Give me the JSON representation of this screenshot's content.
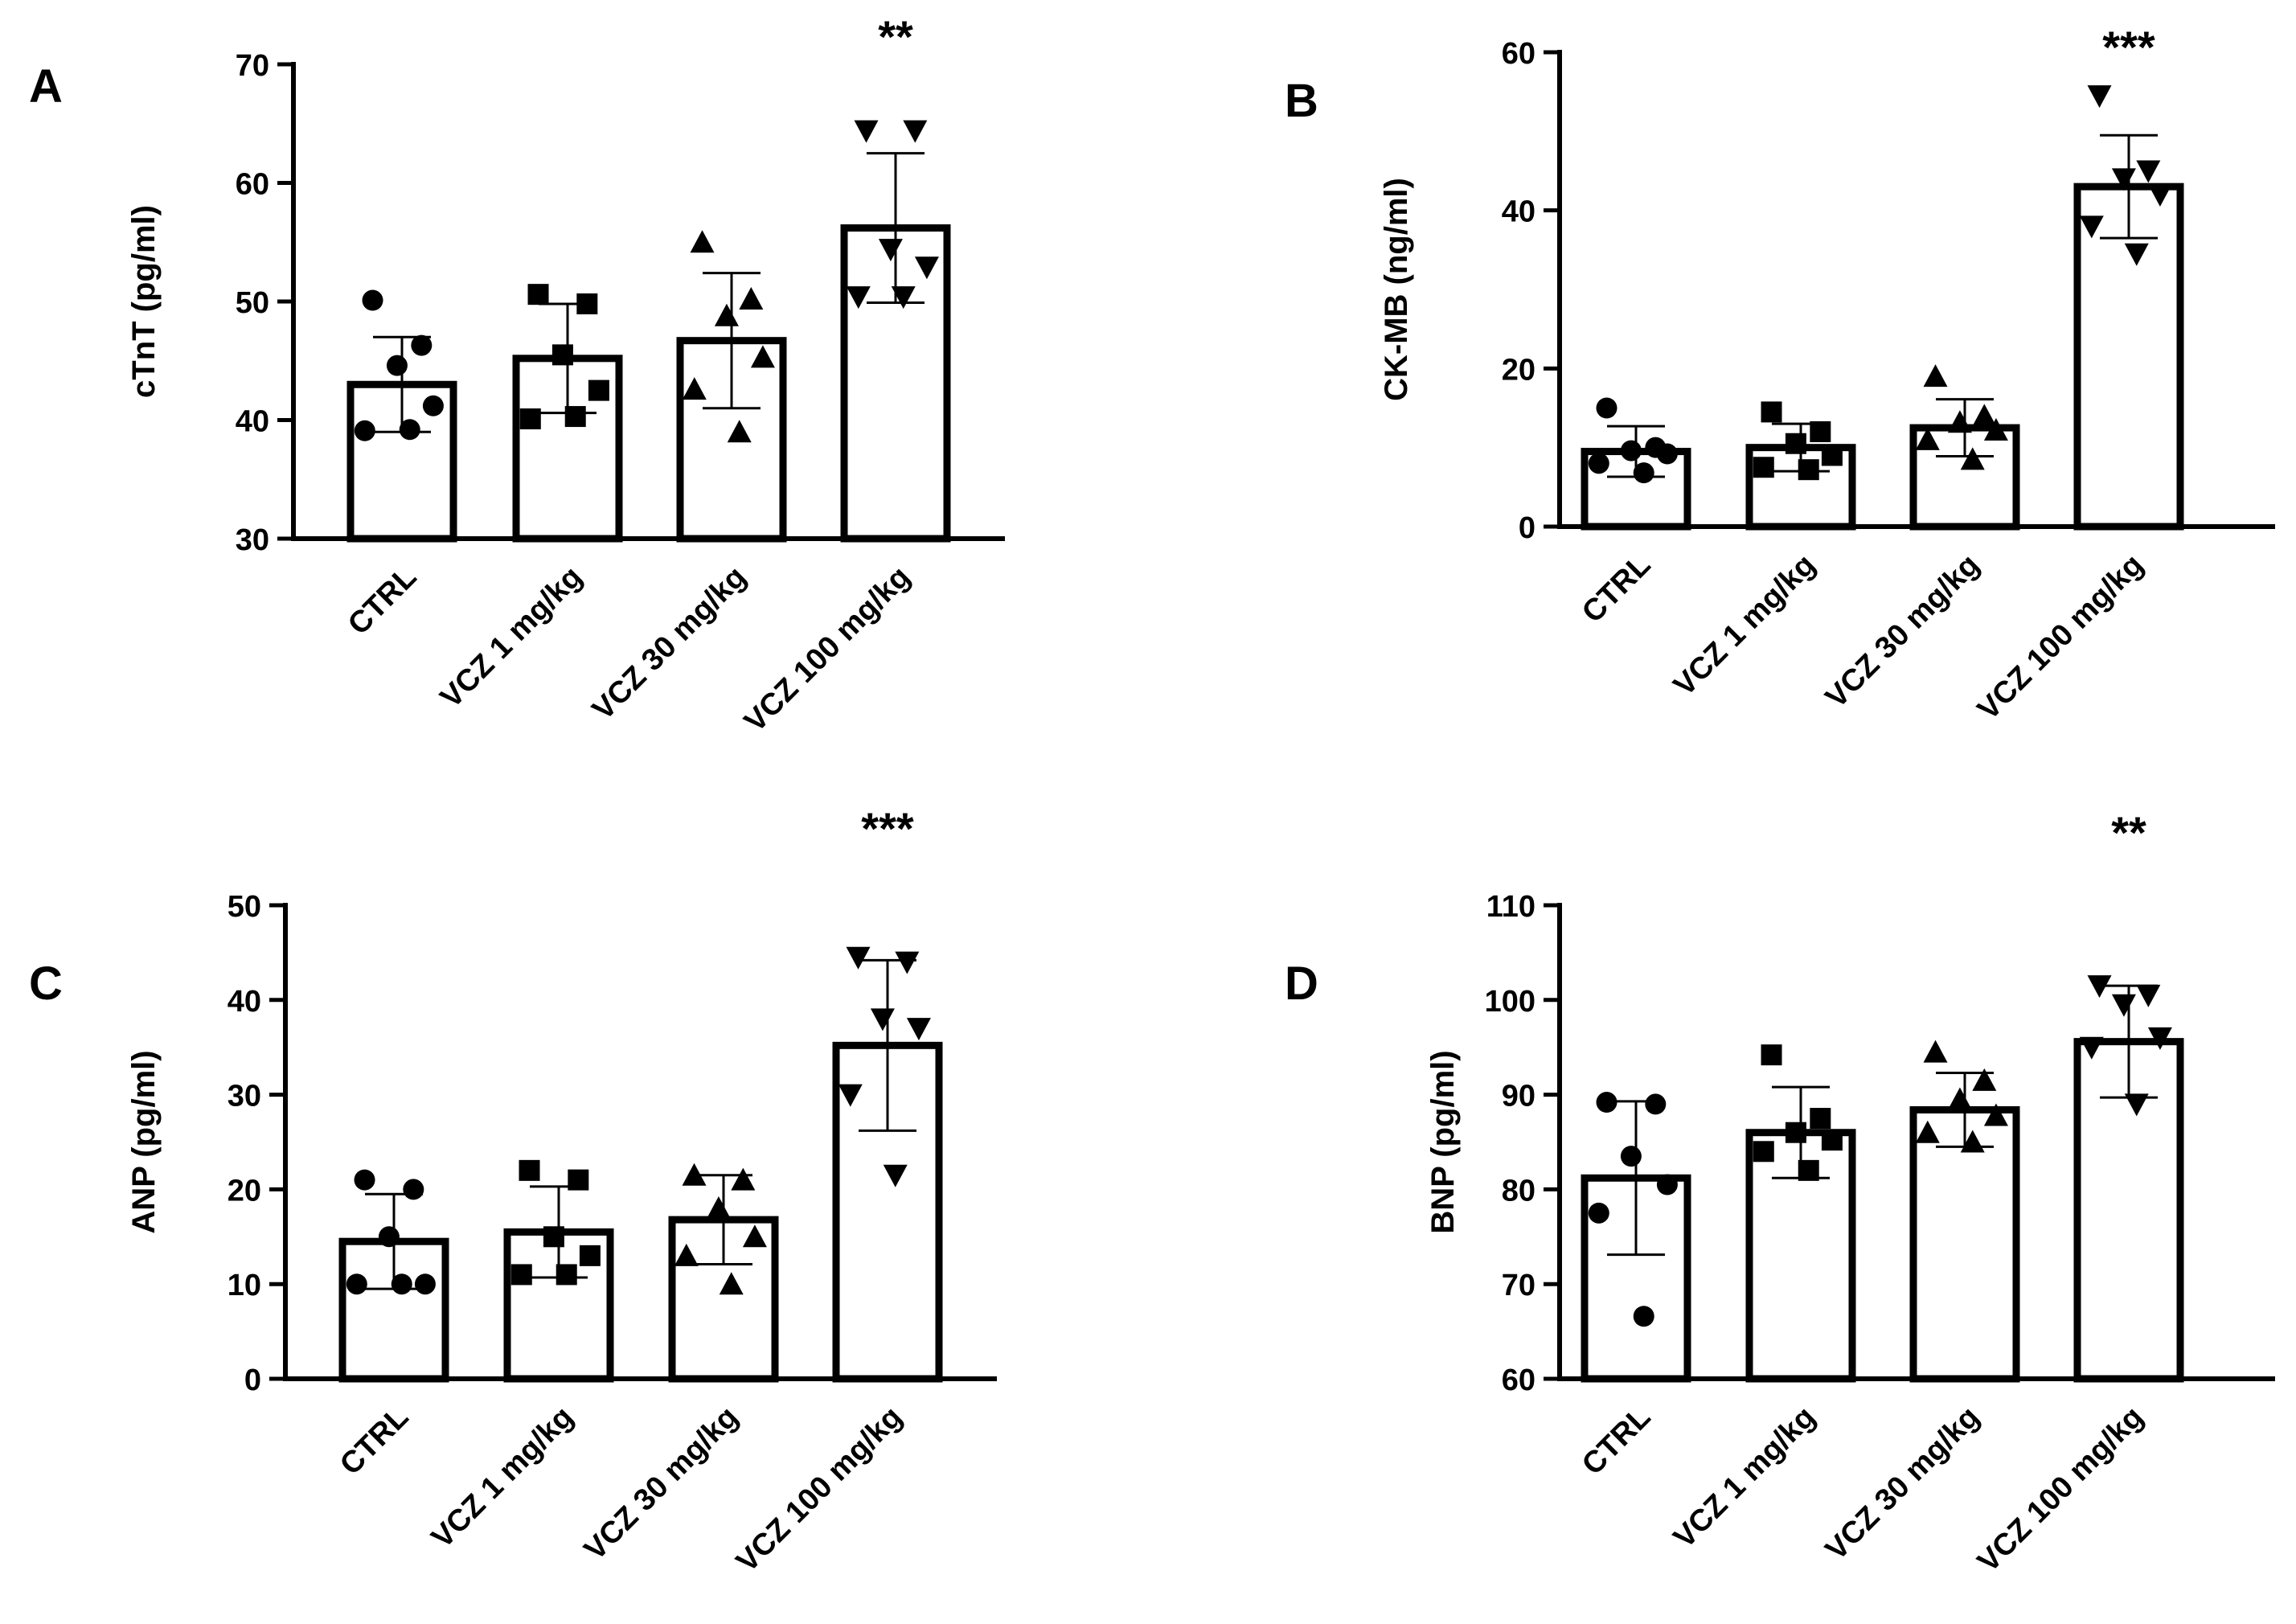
{
  "chart_data": [
    {
      "panel": "A",
      "type": "bar",
      "categories": [
        "CTRL",
        "VCZ 1 mg/kg",
        "VCZ 30 mg/kg",
        "VCZ 100 mg/kg"
      ],
      "values": [
        43.0,
        45.2,
        46.7,
        56.2
      ],
      "error": [
        4.0,
        4.6,
        5.7,
        6.3
      ],
      "markers": [
        "circle",
        "square",
        "triangle-up",
        "triangle-down"
      ],
      "points": [
        [
          50.1,
          46.3,
          44.6,
          41.2,
          39.1,
          39.2
        ],
        [
          50.6,
          49.8,
          45.5,
          42.5,
          40.1,
          40.3
        ],
        [
          55.0,
          50.2,
          48.8,
          45.3,
          42.6,
          39.0
        ],
        [
          64.4,
          64.4,
          54.4,
          52.9,
          50.4,
          50.4
        ]
      ],
      "significance": [
        "",
        "",
        "",
        "**"
      ],
      "title": "",
      "xlabel": "",
      "ylabel": "cTnT (pg/ml)",
      "ylim": [
        30,
        70
      ],
      "yticks": [
        30,
        40,
        50,
        60,
        70
      ]
    },
    {
      "panel": "B",
      "type": "bar",
      "categories": [
        "CTRL",
        "VCZ 1 mg/kg",
        "VCZ 30 mg/kg",
        "VCZ 100 mg/kg"
      ],
      "values": [
        9.5,
        10.0,
        12.5,
        43.0
      ],
      "error": [
        3.2,
        3.0,
        3.6,
        6.5
      ],
      "markers": [
        "circle",
        "square",
        "triangle-up",
        "triangle-down"
      ],
      "points": [
        [
          15.0,
          10.0,
          9.6,
          9.2,
          8.0,
          6.8
        ],
        [
          14.5,
          12.0,
          10.5,
          9.0,
          7.5,
          7.2
        ],
        [
          19.0,
          14.0,
          13.2,
          12.2,
          11.0,
          8.5
        ],
        [
          54.5,
          45.0,
          44.0,
          42.0,
          38.0,
          34.5
        ]
      ],
      "significance": [
        "",
        "",
        "",
        "***"
      ],
      "title": "",
      "xlabel": "",
      "ylabel": "CK-MB (ng/ml)",
      "ylim": [
        0,
        60
      ],
      "yticks": [
        0,
        20,
        40,
        60
      ]
    },
    {
      "panel": "C",
      "type": "bar",
      "categories": [
        "CTRL",
        "VCZ 1 mg/kg",
        "VCZ 30 mg/kg",
        "VCZ 100 mg/kg"
      ],
      "values": [
        14.5,
        15.5,
        16.8,
        35.2
      ],
      "error": [
        5.0,
        4.8,
        4.7,
        9.0
      ],
      "markers": [
        "circle",
        "square",
        "triangle-up",
        "triangle-down"
      ],
      "points": [
        [
          21.0,
          20.0,
          15.0,
          10.0,
          10.0,
          10.0
        ],
        [
          22.0,
          21.0,
          15.0,
          13.0,
          11.0,
          11.0
        ],
        [
          21.5,
          21.0,
          18.0,
          15.0,
          13.0,
          10.0
        ],
        [
          44.5,
          44.0,
          38.0,
          37.0,
          30.0,
          21.5
        ]
      ],
      "significance": [
        "",
        "",
        "",
        "***"
      ],
      "title": "",
      "xlabel": "",
      "ylabel": "ANP (pg/ml)",
      "ylim": [
        0,
        50
      ],
      "yticks": [
        0,
        10,
        20,
        30,
        40,
        50
      ]
    },
    {
      "panel": "D",
      "type": "bar",
      "categories": [
        "CTRL",
        "VCZ 1 mg/kg",
        "VCZ 30 mg/kg",
        "VCZ 100 mg/kg"
      ],
      "values": [
        81.2,
        86.0,
        88.4,
        95.6
      ],
      "error": [
        8.1,
        4.8,
        3.9,
        5.9
      ],
      "markers": [
        "circle",
        "square",
        "triangle-up",
        "triangle-down"
      ],
      "points": [
        [
          89.2,
          89.0,
          83.5,
          80.5,
          77.5,
          66.6
        ],
        [
          94.2,
          87.5,
          86.0,
          85.2,
          84.0,
          82.0
        ],
        [
          94.5,
          91.5,
          89.5,
          87.8,
          86.0,
          85.0
        ],
        [
          101.5,
          100.5,
          99.5,
          96.0,
          95.0,
          89.0
        ]
      ],
      "significance": [
        "",
        "",
        "",
        "**"
      ],
      "title": "",
      "xlabel": "",
      "ylabel": "BNP (pg/ml)",
      "ylim": [
        60,
        110
      ],
      "yticks": [
        60,
        70,
        80,
        90,
        100,
        110
      ]
    }
  ]
}
